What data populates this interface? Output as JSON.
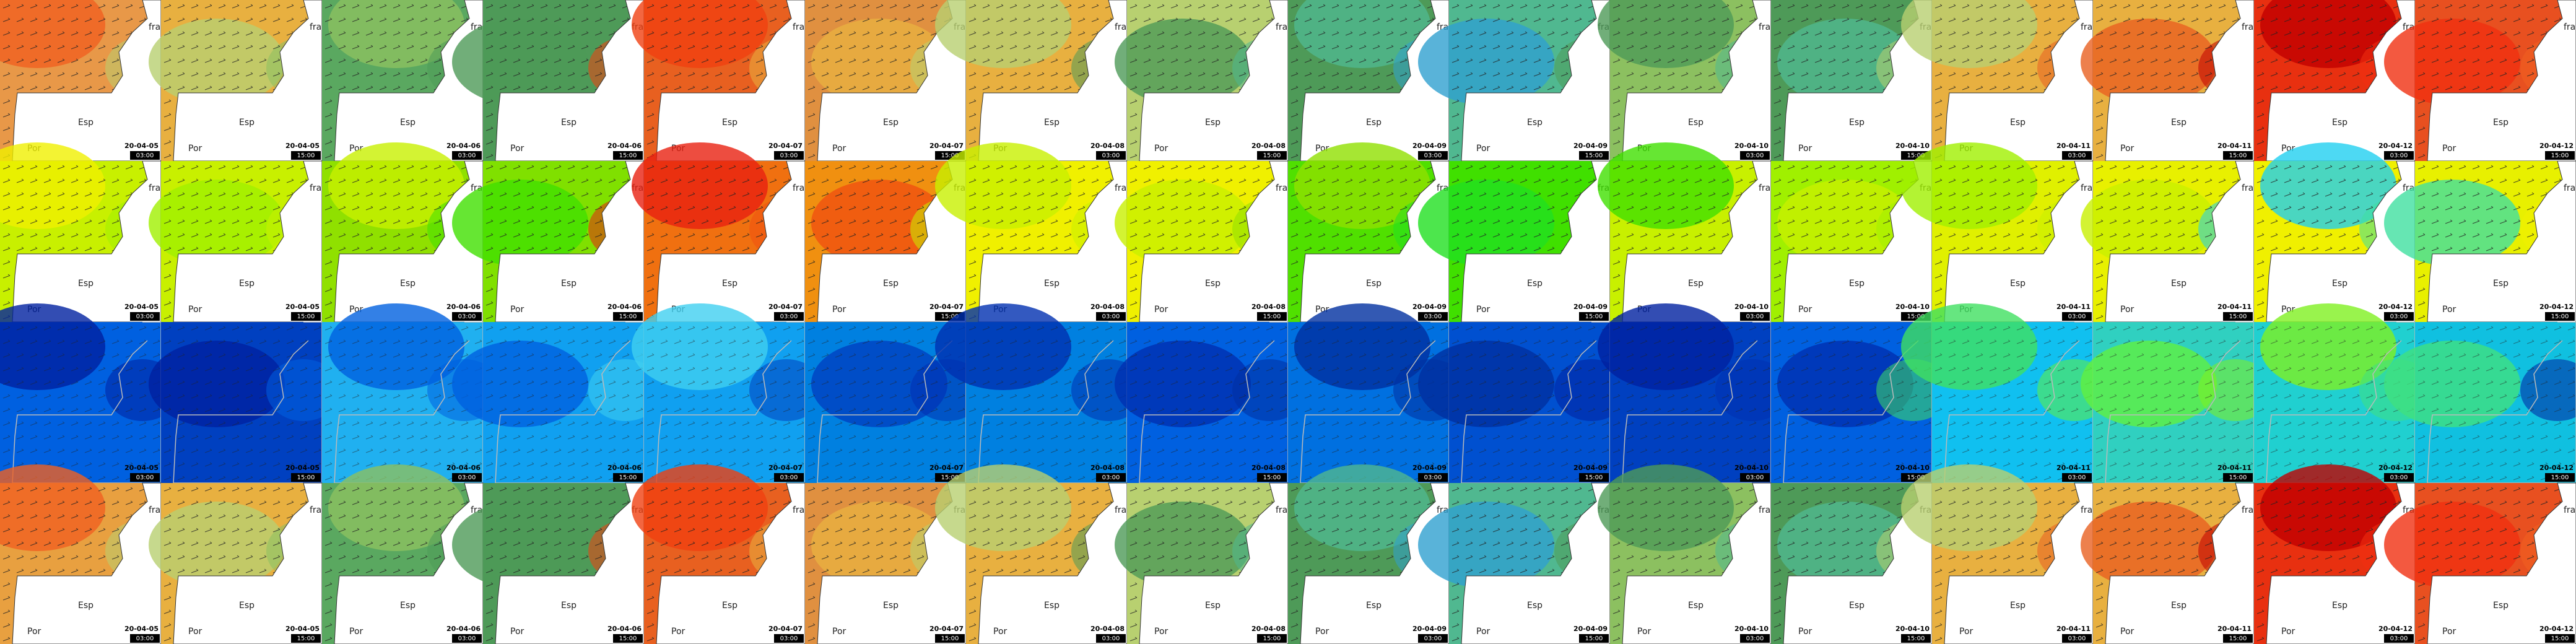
{
  "labels": {
    "fra": "fra",
    "esp": "Esp",
    "por": "Por"
  },
  "rows": [
    {
      "tiles": [
        {
          "date": "20-04-05",
          "time": "03:00"
        },
        {
          "date": "20-04-05",
          "time": "15:00"
        },
        {
          "date": "20-04-06",
          "time": "03:00"
        },
        {
          "date": "20-04-06",
          "time": "15:00"
        },
        {
          "date": "20-04-07",
          "time": "03:00"
        },
        {
          "date": "20-04-07",
          "time": "15:00"
        },
        {
          "date": "20-04-08",
          "time": "03:00"
        },
        {
          "date": "20-04-08",
          "time": "15:00"
        },
        {
          "date": "20-04-09",
          "time": "03:00"
        },
        {
          "date": "20-04-09",
          "time": "15:00"
        },
        {
          "date": "20-04-10",
          "time": "03:00"
        },
        {
          "date": "20-04-10",
          "time": "15:00"
        },
        {
          "date": "20-04-11",
          "time": "03:00"
        },
        {
          "date": "20-04-11",
          "time": "15:00"
        },
        {
          "date": "20-04-12",
          "time": "03:00"
        },
        {
          "date": "20-04-12",
          "time": "15:00"
        }
      ]
    },
    {
      "tiles": [
        {
          "date": "20-04-05",
          "time": "03:00"
        },
        {
          "date": "20-04-05",
          "time": "15:00"
        },
        {
          "date": "20-04-06",
          "time": "03:00"
        },
        {
          "date": "20-04-06",
          "time": "15:00"
        },
        {
          "date": "20-04-07",
          "time": "03:00"
        },
        {
          "date": "20-04-07",
          "time": "15:00"
        },
        {
          "date": "20-04-08",
          "time": "03:00"
        },
        {
          "date": "20-04-08",
          "time": "15:00"
        },
        {
          "date": "20-04-09",
          "time": "03:00"
        },
        {
          "date": "20-04-09",
          "time": "15:00"
        },
        {
          "date": "20-04-10",
          "time": "03:00"
        },
        {
          "date": "20-04-10",
          "time": "15:00"
        },
        {
          "date": "20-04-11",
          "time": "03:00"
        },
        {
          "date": "20-04-11",
          "time": "15:00"
        },
        {
          "date": "20-04-12",
          "time": "03:00"
        },
        {
          "date": "20-04-12",
          "time": "15:00"
        }
      ]
    },
    {
      "tiles": [
        {
          "date": "20-04-05",
          "time": "03:00"
        },
        {
          "date": "20-04-05",
          "time": "15:00"
        },
        {
          "date": "20-04-06",
          "time": "03:00"
        },
        {
          "date": "20-04-06",
          "time": "15:00"
        },
        {
          "date": "20-04-07",
          "time": "03:00"
        },
        {
          "date": "20-04-07",
          "time": "15:00"
        },
        {
          "date": "20-04-08",
          "time": "03:00"
        },
        {
          "date": "20-04-08",
          "time": "15:00"
        },
        {
          "date": "20-04-09",
          "time": "03:00"
        },
        {
          "date": "20-04-09",
          "time": "15:00"
        },
        {
          "date": "20-04-10",
          "time": "03:00"
        },
        {
          "date": "20-04-10",
          "time": "15:00"
        },
        {
          "date": "20-04-11",
          "time": "03:00"
        },
        {
          "date": "20-04-11",
          "time": "15:00"
        },
        {
          "date": "20-04-12",
          "time": "03:00"
        },
        {
          "date": "20-04-12",
          "time": "15:00"
        }
      ]
    },
    {
      "tiles": [
        {
          "date": "20-04-05",
          "time": "03:00"
        },
        {
          "date": "20-04-05",
          "time": "15:00"
        },
        {
          "date": "20-04-06",
          "time": "03:00"
        },
        {
          "date": "20-04-06",
          "time": "15:00"
        },
        {
          "date": "20-04-07",
          "time": "03:00"
        },
        {
          "date": "20-04-07",
          "time": "15:00"
        },
        {
          "date": "20-04-08",
          "time": "03:00"
        },
        {
          "date": "20-04-08",
          "time": "15:00"
        },
        {
          "date": "20-04-09",
          "time": "03:00"
        },
        {
          "date": "20-04-09",
          "time": "15:00"
        },
        {
          "date": "20-04-10",
          "time": "03:00"
        },
        {
          "date": "20-04-10",
          "time": "15:00"
        },
        {
          "date": "20-04-11",
          "time": "03:00"
        },
        {
          "date": "20-04-11",
          "time": "15:00"
        },
        {
          "date": "20-04-12",
          "time": "03:00"
        },
        {
          "date": "20-04-12",
          "time": "15:00"
        }
      ]
    }
  ]
}
